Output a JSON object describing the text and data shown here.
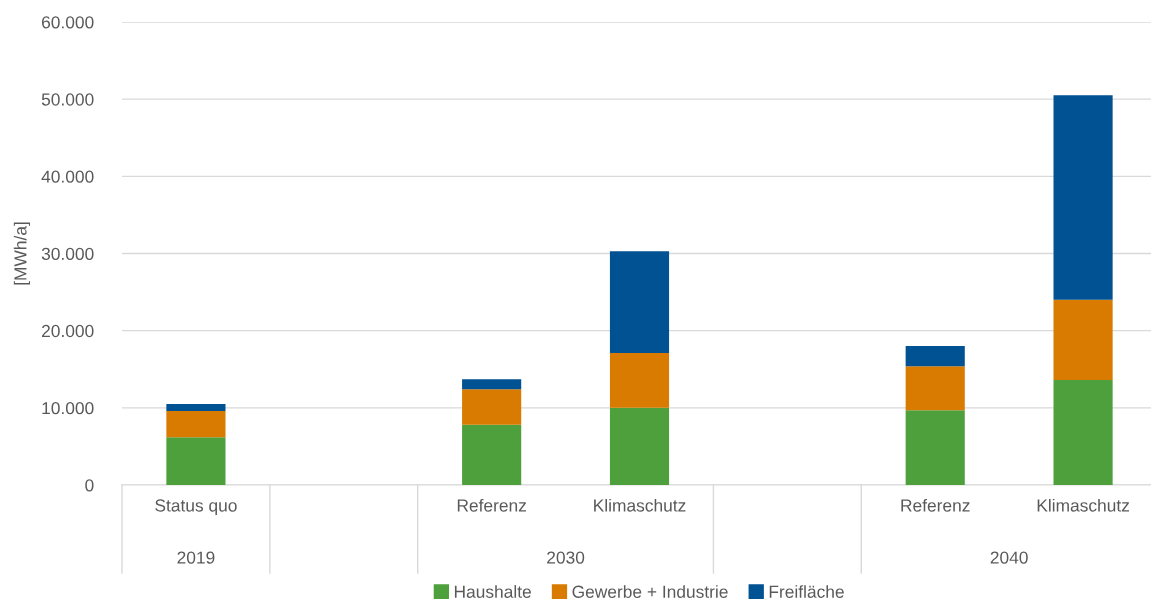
{
  "chart_data": {
    "type": "bar",
    "stacked": true,
    "categories": [
      "Status quo",
      null,
      "Referenz",
      "Klimaschutz",
      null,
      "Referenz",
      "Klimaschutz"
    ],
    "series": [
      {
        "name": "Haushalte",
        "color": "#4ea03c",
        "values": [
          6200,
          null,
          7800,
          10000,
          null,
          9700,
          13600
        ]
      },
      {
        "name": "Gewerbe + Industrie",
        "color": "#d97b00",
        "values": [
          3400,
          null,
          4600,
          7100,
          null,
          5700,
          10400
        ]
      },
      {
        "name": "Freifläche",
        "color": "#005293",
        "values": [
          900,
          null,
          1300,
          13200,
          null,
          2600,
          26500
        ]
      }
    ],
    "ylabel": "[MWh/a]",
    "ylim": [
      0,
      60000
    ],
    "yticks": [
      {
        "value": 0,
        "label": "0"
      },
      {
        "value": 10000,
        "label": "10.000"
      },
      {
        "value": 20000,
        "label": "20.000"
      },
      {
        "value": 30000,
        "label": "30.000"
      },
      {
        "value": 40000,
        "label": "40.000"
      },
      {
        "value": 50000,
        "label": "50.000"
      },
      {
        "value": 60000,
        "label": "60.000"
      }
    ],
    "annotations": [
      "2019",
      "2030",
      "2040"
    ],
    "grid": "y",
    "legend": "bottom"
  }
}
